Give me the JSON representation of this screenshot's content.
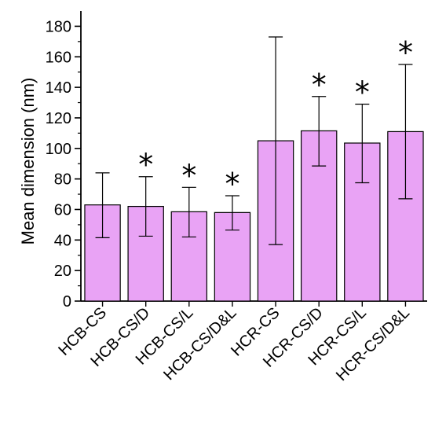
{
  "chart_data": {
    "type": "bar",
    "title": "",
    "xlabel": "",
    "ylabel": "Mean dimension (nm)",
    "ylim": [
      0,
      190
    ],
    "yticks": [
      0,
      20,
      40,
      60,
      80,
      100,
      120,
      140,
      160,
      180
    ],
    "grid": false,
    "bar_color": "#e9a3f5",
    "categories": [
      "HCB-CS",
      "HCB-CS/D",
      "HCB-CS/L",
      "HCB-CS/D&L",
      "HCR-CS",
      "HCR-CS/D",
      "HCR-CS/L",
      "HCR-CS/D&L"
    ],
    "values": [
      63,
      62,
      58.5,
      58,
      105,
      111.5,
      103.5,
      111
    ],
    "error_low": [
      41.5,
      42.5,
      42,
      46.5,
      37,
      88.5,
      77.5,
      67
    ],
    "error_high": [
      84,
      81.5,
      74.5,
      69,
      173,
      134,
      129,
      155
    ],
    "annotations": [
      "",
      "*",
      "*",
      "*",
      "",
      "*",
      "*",
      "*"
    ]
  }
}
